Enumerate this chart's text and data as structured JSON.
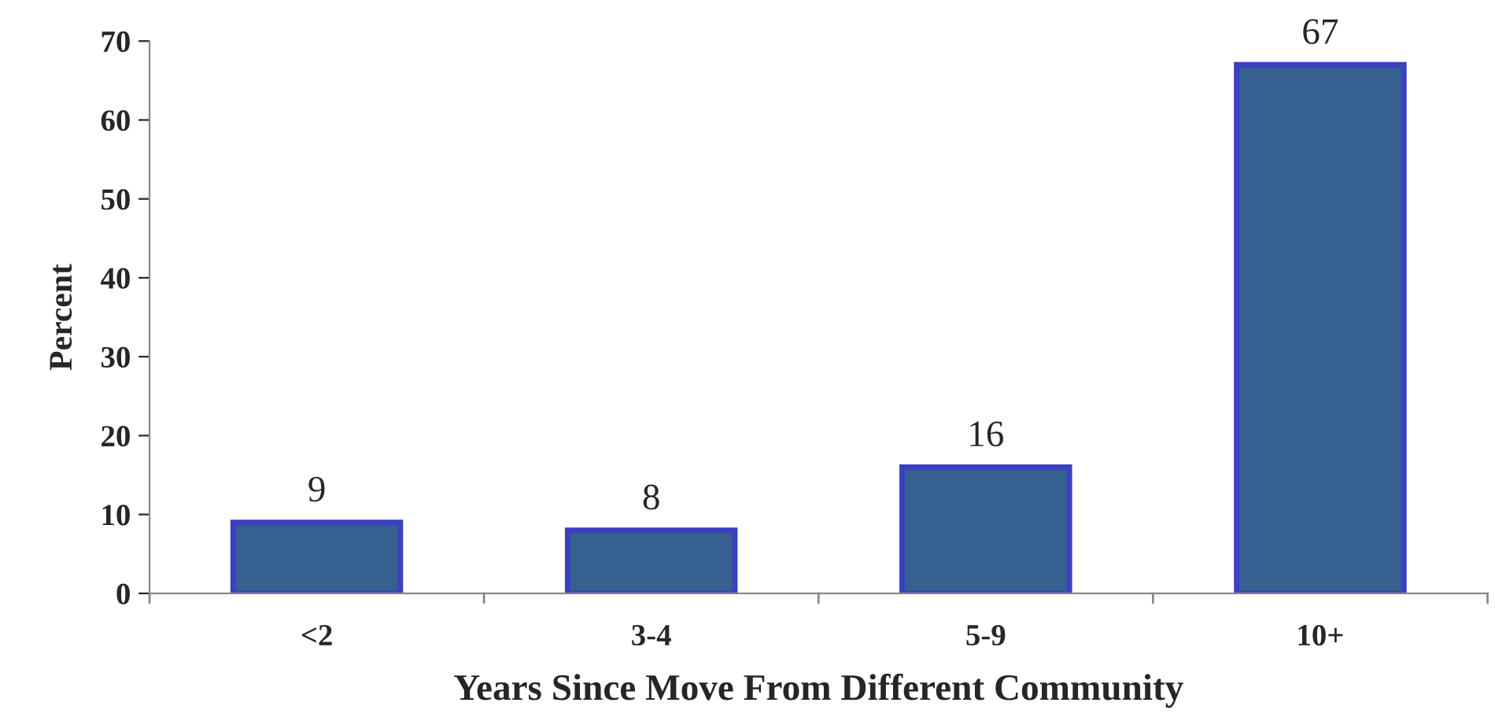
{
  "chart_data": {
    "type": "bar",
    "xlabel": "Years Since Move From Different Community",
    "ylabel": "Percent",
    "categories": [
      "<2",
      "3-4",
      "5-9",
      "10+"
    ],
    "values": [
      9,
      8,
      16,
      67
    ],
    "color": "#36608f",
    "ylim": [
      0,
      70
    ],
    "yticks": [
      0,
      10,
      20,
      30,
      40,
      50,
      60,
      70
    ],
    "data_labels": true,
    "grid": false,
    "legend": false
  }
}
